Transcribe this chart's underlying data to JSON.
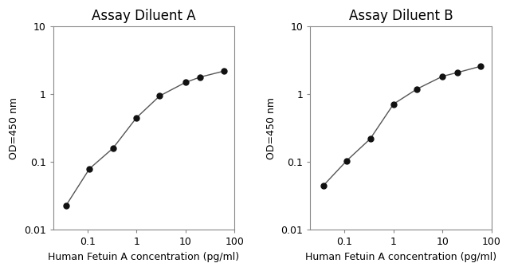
{
  "panel_A": {
    "title": "Assay Diluent A",
    "x": [
      0.037,
      0.111,
      0.333,
      1.0,
      3.0,
      10.0,
      20.0,
      60.0
    ],
    "y": [
      0.023,
      0.08,
      0.16,
      0.45,
      0.95,
      1.5,
      1.8,
      2.2
    ],
    "xlabel": "Human Fetuin A concentration (pg/ml)",
    "ylabel": "OD=450 nm"
  },
  "panel_B": {
    "title": "Assay Diluent B",
    "x": [
      0.037,
      0.111,
      0.333,
      1.0,
      3.0,
      10.0,
      20.0,
      60.0
    ],
    "y": [
      0.045,
      0.105,
      0.22,
      0.72,
      1.2,
      1.85,
      2.1,
      2.6
    ],
    "xlabel": "Human Fetuin A concentration (pg/ml)",
    "ylabel": "OD=450 nm"
  },
  "xlim": [
    0.02,
    100
  ],
  "ylim": [
    0.01,
    10
  ],
  "xticks": [
    0.1,
    1,
    10,
    100
  ],
  "xtick_labels": [
    "0.1",
    "1",
    "10",
    "100"
  ],
  "yticks": [
    0.01,
    0.1,
    1,
    10
  ],
  "ytick_labels": [
    "0.01",
    "0.1",
    "1",
    "10"
  ],
  "line_color": "#555555",
  "marker": "o",
  "marker_color": "#111111",
  "marker_size": 5,
  "bg_color": "#ffffff",
  "title_fontsize": 12,
  "label_fontsize": 9,
  "tick_fontsize": 9
}
